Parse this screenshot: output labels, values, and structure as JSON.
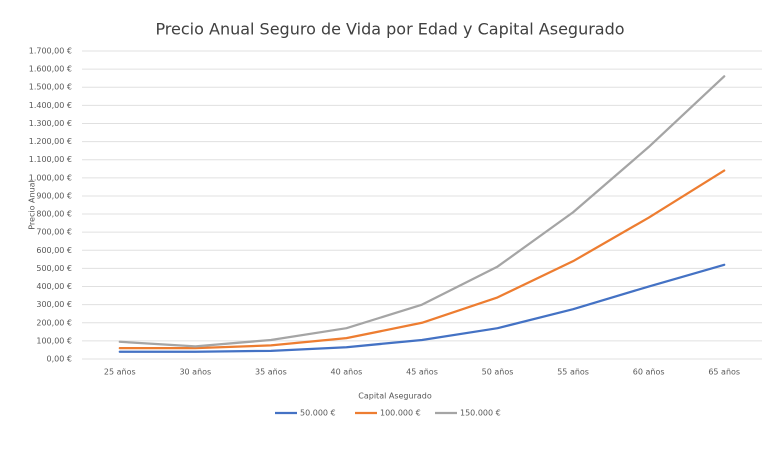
{
  "chart_data": {
    "type": "line",
    "title": "Precio Anual Seguro de Vida por Edad y Capital Asegurado",
    "x_label": "Capital Asegurado",
    "y_label": "Precio Anual",
    "categories": [
      "25 años",
      "30 años",
      "35 años",
      "40 años",
      "45 años",
      "50 años",
      "55 años",
      "60 años",
      "65 años"
    ],
    "series": [
      {
        "name": "50.000 €",
        "color": "#4472c4",
        "values": [
          40,
          40,
          45,
          65,
          105,
          170,
          275,
          400,
          520
        ]
      },
      {
        "name": "100.000 €",
        "color": "#ed7d31",
        "values": [
          60,
          60,
          75,
          115,
          200,
          340,
          540,
          780,
          1040
        ]
      },
      {
        "name": "150.000 €",
        "color": "#a5a5a5",
        "values": [
          95,
          70,
          105,
          170,
          300,
          510,
          810,
          1170,
          1560
        ]
      }
    ],
    "ylim": [
      0,
      1700
    ],
    "yticks": [
      {
        "value": 0,
        "label": "0,00 €"
      },
      {
        "value": 100,
        "label": "100,00 €"
      },
      {
        "value": 200,
        "label": "200,00 €"
      },
      {
        "value": 300,
        "label": "300,00 €"
      },
      {
        "value": 400,
        "label": "400,00 €"
      },
      {
        "value": 500,
        "label": "500,00 €"
      },
      {
        "value": 600,
        "label": "600,00 €"
      },
      {
        "value": 700,
        "label": "700,00 €"
      },
      {
        "value": 800,
        "label": "800,00 €"
      },
      {
        "value": 900,
        "label": "900,00 €"
      },
      {
        "value": 1000,
        "label": "1.000,00 €"
      },
      {
        "value": 1100,
        "label": "1.100,00 €"
      },
      {
        "value": 1200,
        "label": "1.200,00 €"
      },
      {
        "value": 1300,
        "label": "1.300,00 €"
      },
      {
        "value": 1400,
        "label": "1.400,00 €"
      },
      {
        "value": 1500,
        "label": "1.500,00 €"
      },
      {
        "value": 1600,
        "label": "1.600,00 €"
      },
      {
        "value": 1700,
        "label": "1.700,00 €"
      }
    ],
    "grid": true,
    "legend": "bottom"
  }
}
